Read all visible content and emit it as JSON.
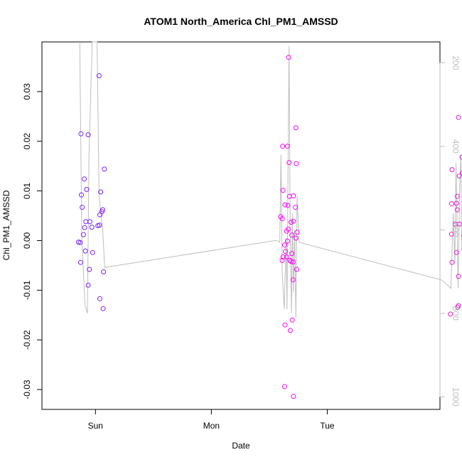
{
  "chart_data": {
    "type": "scatter",
    "title": "ATOM1 North_America Chl_PM1_AMSSD",
    "xlabel": "Date",
    "ylabel": "Chl_PM1_AMSSD",
    "x_ticks": [
      "Sun",
      "Mon",
      "Tue"
    ],
    "y_ticks": [
      "-0.03",
      "-0.02",
      "-0.01",
      "0.00",
      "0.01",
      "0.02",
      "0.03"
    ],
    "y_right_ticks": [
      "200",
      "400",
      "600",
      "800",
      "1000"
    ],
    "xlim": [
      "Sat 12:55",
      "Tue 23:20"
    ],
    "ylim": [
      -0.034,
      0.04
    ],
    "y_right_lim": [
      1030,
      150
    ],
    "y_right_reversed": true,
    "grid": false,
    "series": [
      {
        "color": "#7a1fff",
        "points": [
          {
            "x": "Sat 21:00",
            "y": 0.0215
          },
          {
            "x": "Sat 22:30",
            "y": 0.0213
          },
          {
            "x": "Sun 00:45",
            "y": 0.0332
          },
          {
            "x": "Sat 21:40",
            "y": 0.0124
          },
          {
            "x": "Sat 22:10",
            "y": 0.0103
          },
          {
            "x": "Sat 21:05",
            "y": 0.0092
          },
          {
            "x": "Sun 01:05",
            "y": 0.0098
          },
          {
            "x": "Sun 01:50",
            "y": 0.0144
          },
          {
            "x": "Sat 21:15",
            "y": 0.0067
          },
          {
            "x": "Sun 01:30",
            "y": 0.0062
          },
          {
            "x": "Sun 01:20",
            "y": 0.0058
          },
          {
            "x": "Sun 00:55",
            "y": 0.0052
          },
          {
            "x": "Sat 22:00",
            "y": 0.0038
          },
          {
            "x": "Sat 22:50",
            "y": 0.0038
          },
          {
            "x": "Sun 00:30",
            "y": 0.003
          },
          {
            "x": "Sun 00:50",
            "y": 0.0031
          },
          {
            "x": "Sat 21:45",
            "y": 0.0026
          },
          {
            "x": "Sat 23:15",
            "y": 0.0027
          },
          {
            "x": "Sat 21:30",
            "y": 0.0012
          },
          {
            "x": "Sat 20:30",
            "y": -0.0003
          },
          {
            "x": "Sat 20:50",
            "y": -0.0004
          },
          {
            "x": "Sat 21:55",
            "y": -0.0021
          },
          {
            "x": "Sat 23:25",
            "y": -0.0024
          },
          {
            "x": "Sat 20:55",
            "y": -0.0044
          },
          {
            "x": "Sat 22:45",
            "y": -0.0058
          },
          {
            "x": "Sun 01:40",
            "y": -0.0063
          },
          {
            "x": "Sat 22:30",
            "y": -0.009
          },
          {
            "x": "Sun 00:55",
            "y": -0.0117
          },
          {
            "x": "Sun 01:35",
            "y": -0.0137
          }
        ]
      },
      {
        "color": "#ff00ff",
        "points": [
          {
            "x": "Mon 14:45",
            "y": 0.019
          },
          {
            "x": "Mon 15:45",
            "y": 0.019
          },
          {
            "x": "Mon 16:00",
            "y": 0.0369
          },
          {
            "x": "Mon 17:30",
            "y": 0.0227
          },
          {
            "x": "Mon 16:05",
            "y": 0.0157
          },
          {
            "x": "Mon 17:35",
            "y": 0.0155
          },
          {
            "x": "Mon 14:50",
            "y": 0.0101
          },
          {
            "x": "Mon 16:10",
            "y": 0.0089
          },
          {
            "x": "Mon 17:00",
            "y": 0.009
          },
          {
            "x": "Mon 15:15",
            "y": 0.0072
          },
          {
            "x": "Mon 15:50",
            "y": 0.0071
          },
          {
            "x": "Mon 17:25",
            "y": 0.0067
          },
          {
            "x": "Mon 14:20",
            "y": 0.0048
          },
          {
            "x": "Mon 14:40",
            "y": 0.0044
          },
          {
            "x": "Mon 16:30",
            "y": 0.0037
          },
          {
            "x": "Mon 17:00",
            "y": 0.0039
          },
          {
            "x": "Mon 15:55",
            "y": 0.0023
          },
          {
            "x": "Mon 15:35",
            "y": 0.0019
          },
          {
            "x": "Mon 17:45",
            "y": 0.0017
          },
          {
            "x": "Mon 16:40",
            "y": 0.0011
          },
          {
            "x": "Mon 17:30",
            "y": 0.0005
          },
          {
            "x": "Mon 15:45",
            "y": -0.0001
          },
          {
            "x": "Mon 15:10",
            "y": -0.0009
          },
          {
            "x": "Mon 15:20",
            "y": -0.0022
          },
          {
            "x": "Mon 16:40",
            "y": -0.0026
          },
          {
            "x": "Mon 14:50",
            "y": -0.0033
          },
          {
            "x": "Mon 15:35",
            "y": -0.0033
          },
          {
            "x": "Mon 14:40",
            "y": -0.004
          },
          {
            "x": "Mon 16:15",
            "y": -0.004
          },
          {
            "x": "Mon 16:30",
            "y": -0.0042
          },
          {
            "x": "Mon 16:55",
            "y": -0.0043
          },
          {
            "x": "Mon 17:40",
            "y": -0.0058
          },
          {
            "x": "Mon 16:55",
            "y": -0.0079
          },
          {
            "x": "Mon 16:45",
            "y": -0.016
          },
          {
            "x": "Mon 15:15",
            "y": -0.017
          },
          {
            "x": "Mon 16:20",
            "y": -0.0181
          },
          {
            "x": "Mon 15:10",
            "y": -0.0294
          },
          {
            "x": "Mon 17:00",
            "y": -0.0314
          }
        ]
      },
      {
        "color": "#e81ad9",
        "points": [
          {
            "x": "Wed 04:40",
            "y": 0.0288
          },
          {
            "x": "Wed 04:30",
            "y": 0.0257
          },
          {
            "x": "Wed 03:10",
            "y": 0.0248
          },
          {
            "x": "Wed 03:55",
            "y": 0.0168
          },
          {
            "x": "Wed 01:50",
            "y": 0.0143
          },
          {
            "x": "Wed 04:00",
            "y": 0.0136
          },
          {
            "x": "Wed 03:20",
            "y": 0.013
          },
          {
            "x": "Wed 05:20",
            "y": 0.0091
          },
          {
            "x": "Wed 05:45",
            "y": 0.0089
          },
          {
            "x": "Wed 02:55",
            "y": 0.0089
          },
          {
            "x": "Wed 01:45",
            "y": 0.0074
          },
          {
            "x": "Wed 02:45",
            "y": 0.0075
          },
          {
            "x": "Wed 04:30",
            "y": 0.0065
          },
          {
            "x": "Wed 02:55",
            "y": 0.0062
          },
          {
            "x": "Wed 04:40",
            "y": 0.0036
          },
          {
            "x": "Wed 02:30",
            "y": 0.0033
          },
          {
            "x": "Wed 03:20",
            "y": 0.0033
          },
          {
            "x": "Wed 06:00",
            "y": 0.0015
          },
          {
            "x": "Wed 01:45",
            "y": 0.0013
          },
          {
            "x": "Wed 04:15",
            "y": 0.001
          },
          {
            "x": "Wed 05:30",
            "y": 0.0008
          },
          {
            "x": "Wed 05:45",
            "y": 0.0009
          },
          {
            "x": "Wed 06:00",
            "y": 0.0007
          },
          {
            "x": "Wed 05:00",
            "y": -0.0024
          },
          {
            "x": "Wed 02:45",
            "y": -0.0024
          },
          {
            "x": "Wed 01:50",
            "y": -0.0044
          },
          {
            "x": "Wed 05:40",
            "y": -0.0058
          },
          {
            "x": "Wed 03:10",
            "y": -0.0072
          },
          {
            "x": "Wed 04:30",
            "y": -0.0088
          },
          {
            "x": "Wed 04:40",
            "y": -0.009
          },
          {
            "x": "Wed 03:10",
            "y": -0.0131
          },
          {
            "x": "Wed 03:00",
            "y": -0.0134
          },
          {
            "x": "Wed 01:30",
            "y": -0.0148
          }
        ]
      }
    ],
    "line_series": {
      "color": "#bebebe",
      "axis": "right",
      "points": [
        {
          "x": "Sat 20:45",
          "y": 150
        },
        {
          "x": "Sat 21:10",
          "y": 620
        },
        {
          "x": "Sat 21:50",
          "y": 780
        },
        {
          "x": "Sat 22:20",
          "y": 800
        },
        {
          "x": "Sat 22:40",
          "y": 420
        },
        {
          "x": "Sat 23:20",
          "y": 150
        },
        {
          "x": "Sun 00:20",
          "y": 150
        },
        {
          "x": "Sun 00:45",
          "y": 520
        },
        {
          "x": "Sun 01:30",
          "y": 600
        },
        {
          "x": "Sun 01:55",
          "y": 690
        },
        {
          "x": "Mon 13:30",
          "y": 625
        },
        {
          "x": "Mon 14:10",
          "y": 630
        },
        {
          "x": "Mon 14:25",
          "y": 420
        },
        {
          "x": "Mon 14:40",
          "y": 700
        },
        {
          "x": "Mon 15:05",
          "y": 790
        },
        {
          "x": "Mon 15:30",
          "y": 620
        },
        {
          "x": "Mon 15:40",
          "y": 790
        },
        {
          "x": "Mon 15:55",
          "y": 400
        },
        {
          "x": "Mon 16:05",
          "y": 160
        },
        {
          "x": "Mon 16:20",
          "y": 620
        },
        {
          "x": "Mon 16:35",
          "y": 800
        },
        {
          "x": "Mon 16:45",
          "y": 560
        },
        {
          "x": "Mon 17:00",
          "y": 750
        },
        {
          "x": "Mon 17:15",
          "y": 600
        },
        {
          "x": "Mon 17:30",
          "y": 810
        },
        {
          "x": "Mon 17:45",
          "y": 520
        },
        {
          "x": "Mon 18:10",
          "y": 630
        },
        {
          "x": "Tue 23:40",
          "y": 720
        },
        {
          "x": "Wed 01:35",
          "y": 740
        },
        {
          "x": "Wed 02:05",
          "y": 560
        },
        {
          "x": "Wed 02:25",
          "y": 680
        },
        {
          "x": "Wed 02:40",
          "y": 440
        },
        {
          "x": "Wed 03:05",
          "y": 740
        },
        {
          "x": "Wed 03:25",
          "y": 500
        },
        {
          "x": "Wed 03:40",
          "y": 420
        },
        {
          "x": "Wed 03:50",
          "y": 650
        },
        {
          "x": "Wed 04:10",
          "y": 600
        },
        {
          "x": "Wed 04:30",
          "y": 800
        },
        {
          "x": "Wed 04:55",
          "y": 800
        },
        {
          "x": "Wed 05:15",
          "y": 820
        },
        {
          "x": "Wed 05:45",
          "y": 820
        }
      ]
    }
  }
}
